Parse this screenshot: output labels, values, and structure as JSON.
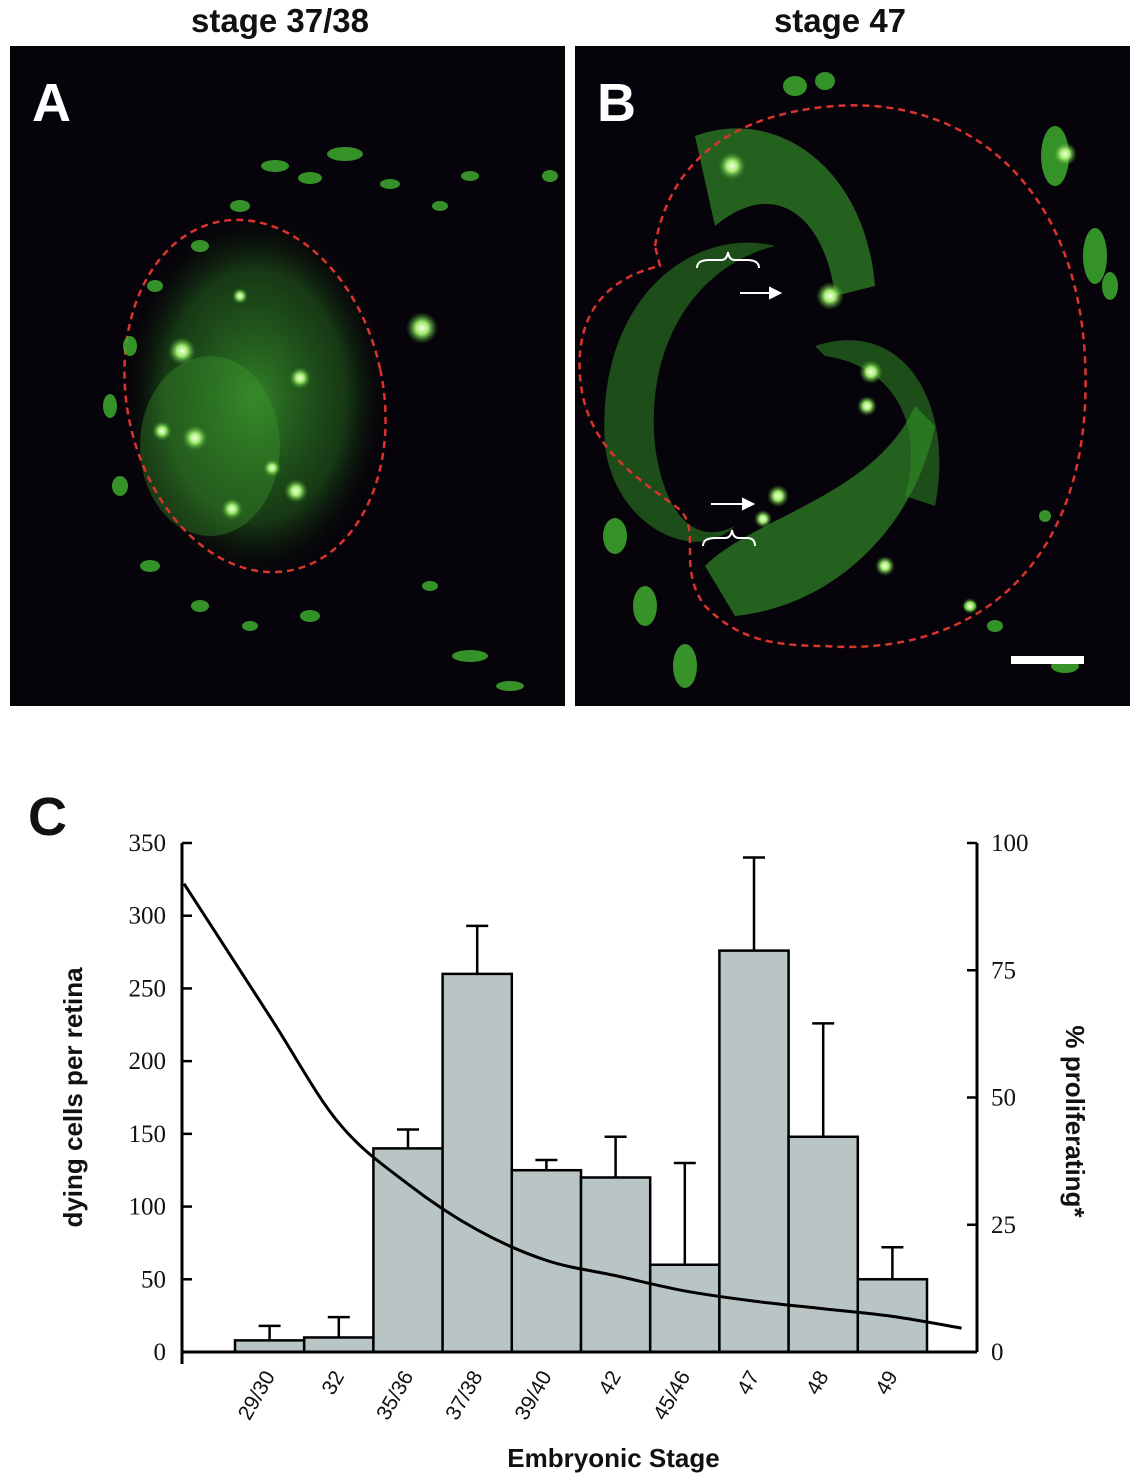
{
  "panels": [
    {
      "letter": "A",
      "title": "stage 37/38"
    },
    {
      "letter": "B",
      "title": "stage 47"
    }
  ],
  "colors": {
    "background": "#07030a",
    "fluorescence": "#4fc93a",
    "outline_dashed": "#d9342e",
    "bar_fill": "#b9c4c4",
    "curve": "#000000"
  },
  "chart_letter": "C",
  "chart_data": {
    "type": "bar",
    "categories": [
      "29/30",
      "32",
      "35/36",
      "37/38",
      "39/40",
      "42",
      "45/46",
      "47",
      "48",
      "49"
    ],
    "values": [
      8,
      10,
      140,
      260,
      125,
      120,
      60,
      276,
      148,
      50
    ],
    "error_upper": [
      18,
      24,
      153,
      293,
      132,
      148,
      130,
      340,
      226,
      72
    ],
    "xlabel": "Embryonic Stage",
    "ylabel": "dying cells per retina",
    "ylim": [
      0,
      350
    ],
    "yticks": [
      0,
      50,
      100,
      150,
      200,
      250,
      300,
      350
    ],
    "y2label": "% proliferating*",
    "y2lim": [
      0,
      100
    ],
    "y2ticks": [
      0,
      25,
      50,
      75,
      100
    ],
    "curve": {
      "axis": "right",
      "description_points": [
        {
          "stage_index": -1.5,
          "value": 92
        },
        {
          "stage_index": 0,
          "value": 66
        },
        {
          "stage_index": 1,
          "value": 45
        },
        {
          "stage_index": 2,
          "value": 33
        },
        {
          "stage_index": 3,
          "value": 24
        },
        {
          "stage_index": 4,
          "value": 18
        },
        {
          "stage_index": 5,
          "value": 15
        },
        {
          "stage_index": 6,
          "value": 12
        },
        {
          "stage_index": 7,
          "value": 10
        },
        {
          "stage_index": 8,
          "value": 8.5
        },
        {
          "stage_index": 9,
          "value": 7
        },
        {
          "stage_index": 10,
          "value": 4.7
        }
      ]
    },
    "grid": false
  }
}
